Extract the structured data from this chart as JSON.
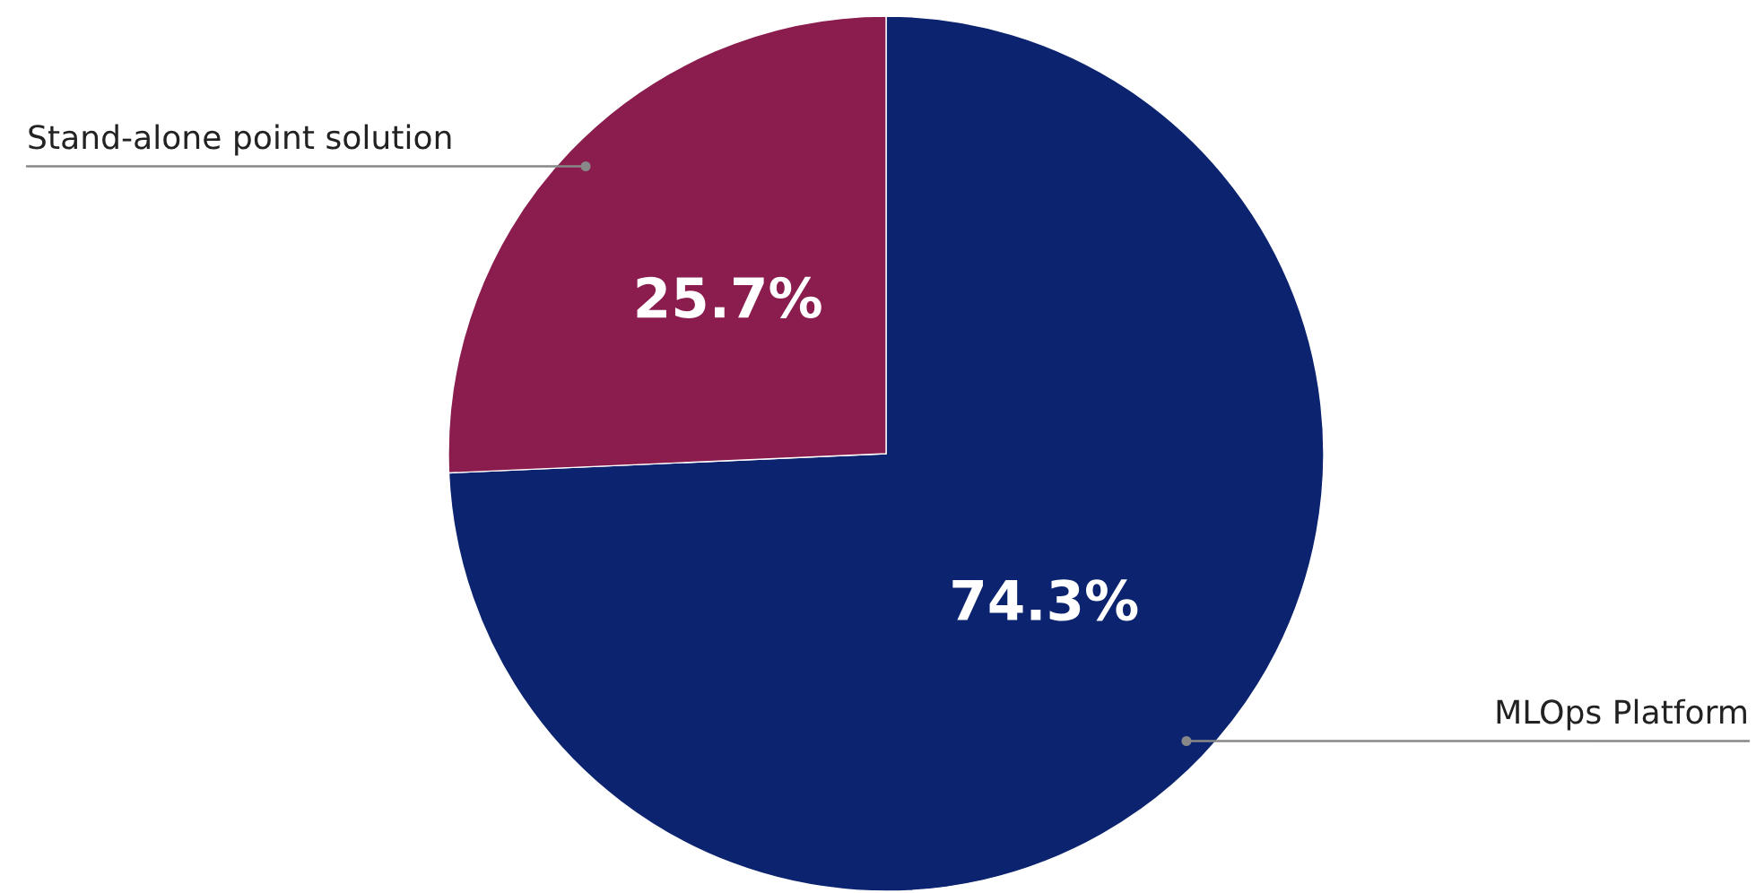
{
  "chart_data": {
    "type": "pie",
    "categories": [
      "MLOps Platform",
      "Stand-alone point solution"
    ],
    "values": [
      74.3,
      25.7
    ],
    "colors": [
      "#0c2470",
      "#8a1c4e"
    ],
    "value_labels": [
      "74.3%",
      "25.7%"
    ],
    "legend": false
  }
}
